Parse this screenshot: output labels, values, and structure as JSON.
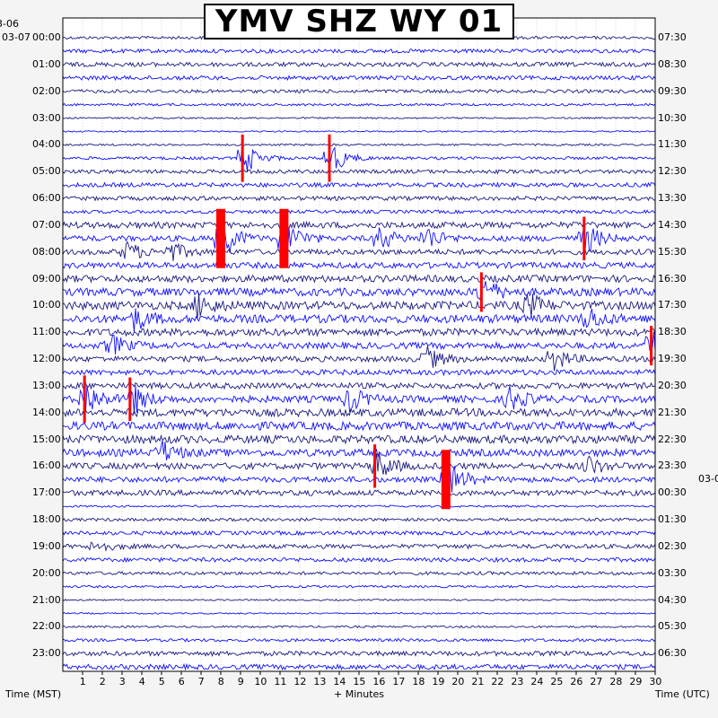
{
  "chart_data": {
    "type": "seismogram-helicorder",
    "title": "YMV SHZ WY 01",
    "xlabel": "+ Minutes",
    "left_axis_label": "Time (MST)",
    "right_axis_label": "Time (UTC)",
    "x_ticks": [
      "1",
      "2",
      "3",
      "4",
      "5",
      "6",
      "7",
      "8",
      "9",
      "10",
      "11",
      "12",
      "13",
      "14",
      "15",
      "16",
      "17",
      "18",
      "19",
      "20",
      "21",
      "22",
      "23",
      "24",
      "25",
      "26",
      "27",
      "28",
      "29",
      "30"
    ],
    "xlim": [
      0,
      30
    ],
    "lines_per_hour": 2,
    "top_left_date": "3-06",
    "left_start_date": "03-07",
    "right_date_change": "03-0",
    "left_hour_labels": [
      "00:00",
      "01:00",
      "02:00",
      "03:00",
      "04:00",
      "05:00",
      "06:00",
      "07:00",
      "08:00",
      "09:00",
      "10:00",
      "11:00",
      "12:00",
      "13:00",
      "14:00",
      "15:00",
      "16:00",
      "17:00",
      "18:00",
      "19:00",
      "20:00",
      "21:00",
      "22:00",
      "23:00"
    ],
    "right_hour_labels": [
      "07:30",
      "08:30",
      "09:30",
      "10:30",
      "11:30",
      "12:30",
      "13:30",
      "14:30",
      "15:30",
      "16:30",
      "17:30",
      "18:30",
      "19:30",
      "20:30",
      "21:30",
      "22:30",
      "23:30",
      "00:30",
      "01:30",
      "02:30",
      "03:30",
      "04:30",
      "05:30",
      "06:30"
    ],
    "trace_colors": [
      "#1a1a80",
      "#1010ff"
    ],
    "clip_color": "#ff0000",
    "events": [
      {
        "hour": 4.5,
        "minute": 9.1,
        "strength": 2.4
      },
      {
        "hour": 4.5,
        "minute": 13.5,
        "strength": 2.4
      },
      {
        "hour": 7.5,
        "minute": 8.0,
        "strength": 3.0
      },
      {
        "hour": 7.5,
        "minute": 11.2,
        "strength": 3.0
      },
      {
        "hour": 7.5,
        "minute": 16.0,
        "strength": 1.6
      },
      {
        "hour": 7.5,
        "minute": 18.4,
        "strength": 1.6
      },
      {
        "hour": 7.5,
        "minute": 26.4,
        "strength": 2.2
      },
      {
        "hour": 8.0,
        "minute": 3.2,
        "strength": 1.4
      },
      {
        "hour": 8.0,
        "minute": 5.5,
        "strength": 1.2
      },
      {
        "hour": 9.5,
        "minute": 21.2,
        "strength": 2.0
      },
      {
        "hour": 10.0,
        "minute": 6.8,
        "strength": 1.6
      },
      {
        "hour": 10.5,
        "minute": 3.6,
        "strength": 1.4
      },
      {
        "hour": 10.0,
        "minute": 23.5,
        "strength": 1.6
      },
      {
        "hour": 10.5,
        "minute": 26.5,
        "strength": 1.6
      },
      {
        "hour": 11.5,
        "minute": 2.4,
        "strength": 1.4
      },
      {
        "hour": 11.5,
        "minute": 29.8,
        "strength": 2.0
      },
      {
        "hour": 12.0,
        "minute": 18.3,
        "strength": 1.8
      },
      {
        "hour": 12.0,
        "minute": 24.8,
        "strength": 1.6
      },
      {
        "hour": 13.5,
        "minute": 1.1,
        "strength": 2.4
      },
      {
        "hour": 13.5,
        "minute": 3.4,
        "strength": 2.2
      },
      {
        "hour": 13.5,
        "minute": 14.5,
        "strength": 1.6
      },
      {
        "hour": 13.5,
        "minute": 22.6,
        "strength": 1.6
      },
      {
        "hour": 16.0,
        "minute": 15.8,
        "strength": 2.2
      },
      {
        "hour": 16.5,
        "minute": 19.4,
        "strength": 3.0
      },
      {
        "hour": 15.5,
        "minute": 5.0,
        "strength": 1.4
      },
      {
        "hour": 16.0,
        "minute": 26.5,
        "strength": 1.4
      },
      {
        "hour": 19.0,
        "minute": 1.6,
        "strength": 0.9
      }
    ]
  }
}
